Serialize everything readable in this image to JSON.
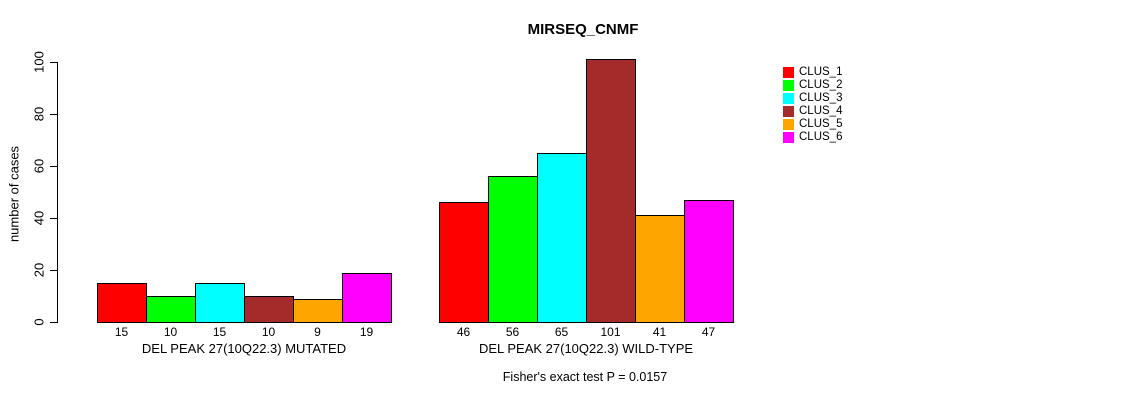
{
  "chart_data": {
    "type": "bar",
    "title": "MIRSEQ_CNMF",
    "ylabel": "number of cases",
    "xlabel": "",
    "ylim": [
      0,
      100
    ],
    "yticks": [
      0,
      20,
      40,
      60,
      80,
      100
    ],
    "grid": false,
    "legend_position": "right",
    "clusters": [
      "CLUS_1",
      "CLUS_2",
      "CLUS_3",
      "CLUS_4",
      "CLUS_5",
      "CLUS_6"
    ],
    "colors": [
      "#FF0000",
      "#00FF00",
      "#00FFFF",
      "#A52A2A",
      "#FFA500",
      "#FF00FF"
    ],
    "groups": [
      {
        "label": "DEL PEAK 27(10Q22.3) MUTATED",
        "values": [
          15,
          10,
          15,
          10,
          9,
          19
        ]
      },
      {
        "label": "DEL PEAK 27(10Q22.3) WILD-TYPE",
        "values": [
          46,
          56,
          65,
          101,
          41,
          47
        ]
      }
    ],
    "bar_value_labels_shown": true,
    "annotation": "Fisher's exact test P = 0.0157"
  }
}
